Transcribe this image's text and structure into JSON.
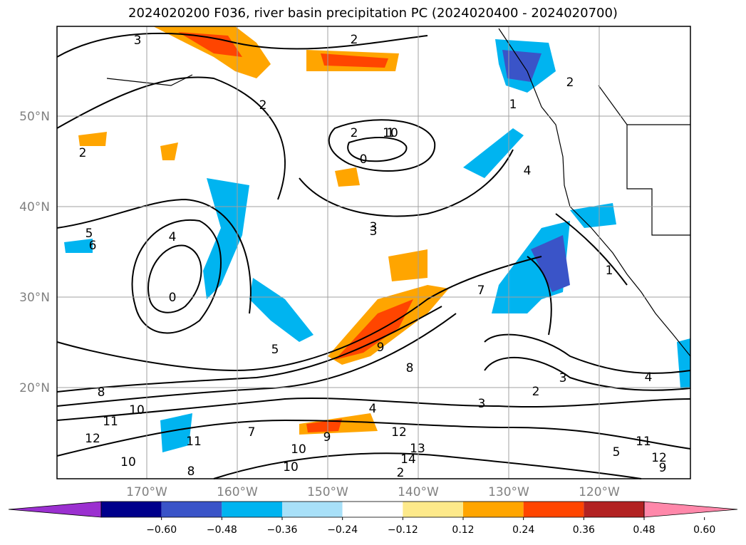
{
  "title": "2024020200 F036, river basin precipitation PC (2024020400 - 2024020700)",
  "lat_labels": [
    "50°N",
    "40°N",
    "30°N",
    "20°N"
  ],
  "lon_labels": [
    "170°W",
    "160°W",
    "150°W",
    "140°W",
    "130°W",
    "120°W"
  ],
  "colorbar": {
    "ticks": [
      "−0.60",
      "−0.48",
      "−0.36",
      "−0.24",
      "−0.12",
      "0.12",
      "0.24",
      "0.36",
      "0.48",
      "0.60"
    ],
    "colors": [
      "#9b30d0",
      "#00008b",
      "#3a54c8",
      "#00b4f0",
      "#a8e0f8",
      "#ffffff",
      "#fde98a",
      "#ffa500",
      "#ff4500",
      "#b22222",
      "#ff88aa"
    ]
  },
  "contour_labels": [
    "3",
    "2",
    "1",
    "2",
    "2",
    "0",
    "2",
    "1",
    "3",
    "4",
    "5",
    "6",
    "4",
    "0",
    "7",
    "8",
    "9",
    "5",
    "7",
    "8",
    "10",
    "11",
    "12",
    "10",
    "11",
    "8",
    "9",
    "10",
    "10",
    "12",
    "13",
    "14",
    "2",
    "3",
    "2",
    "4",
    "3",
    "3",
    "1",
    "2",
    "1",
    "10",
    "11",
    "12",
    "9",
    "5",
    "4"
  ],
  "map_fill": {
    "ocean": "#ffffff",
    "contour_color": "#000000",
    "grid_color": "#a0a0a0"
  }
}
